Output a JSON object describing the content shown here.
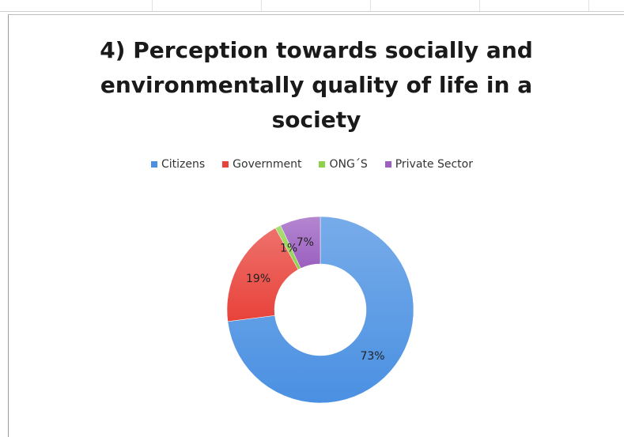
{
  "chart_data": {
    "type": "pie",
    "variant": "donut",
    "title": "4) Perception towards socially and\nenvironmentally quality of life in a\nsociety",
    "categories": [
      "Citizens",
      "Government",
      "ONG´S",
      "Private Sector"
    ],
    "values": [
      73,
      19,
      1,
      7
    ],
    "value_labels": [
      "73%",
      "19%",
      "1%",
      "7%"
    ],
    "colors": [
      "#4a90e2",
      "#e8423a",
      "#8ed24a",
      "#9b5fc0"
    ],
    "legend_position": "top"
  }
}
